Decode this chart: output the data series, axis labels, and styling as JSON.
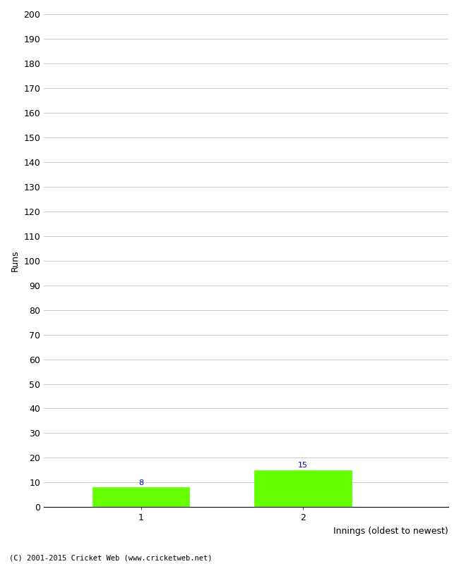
{
  "categories": [
    1,
    2
  ],
  "values": [
    8,
    15
  ],
  "bar_color": "#66ff00",
  "bar_edge_color": "#66ff00",
  "ylabel": "Runs",
  "xlabel": "Innings (oldest to newest)",
  "ylim": [
    0,
    200
  ],
  "yticks": [
    0,
    10,
    20,
    30,
    40,
    50,
    60,
    70,
    80,
    90,
    100,
    110,
    120,
    130,
    140,
    150,
    160,
    170,
    180,
    190,
    200
  ],
  "xticks": [
    1,
    2
  ],
  "footnote": "(C) 2001-2015 Cricket Web (www.cricketweb.net)",
  "background_color": "#ffffff",
  "grid_color": "#cccccc",
  "label_color": "#0000cc",
  "bar_width": 0.6,
  "axis_fontsize": 9,
  "label_fontsize": 8,
  "tick_label_fontsize": 9
}
